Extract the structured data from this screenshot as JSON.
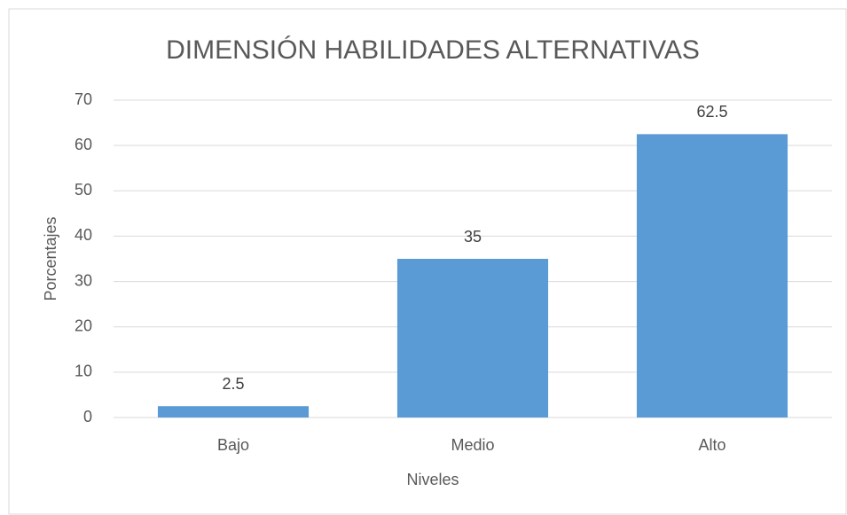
{
  "chart_data": {
    "type": "bar",
    "title": "DIMENSIÓN HABILIDADES ALTERNATIVAS",
    "x_label": "Niveles",
    "y_label": "Porcentajes",
    "categories": [
      "Bajo",
      "Medio",
      "Alto"
    ],
    "values": [
      2.5,
      35,
      62.5
    ],
    "color": "#5b9bd5",
    "ylim": [
      0,
      70
    ],
    "yticks": [
      0,
      10,
      20,
      30,
      40,
      50,
      60,
      70
    ],
    "grid": true,
    "data_labels": true
  }
}
